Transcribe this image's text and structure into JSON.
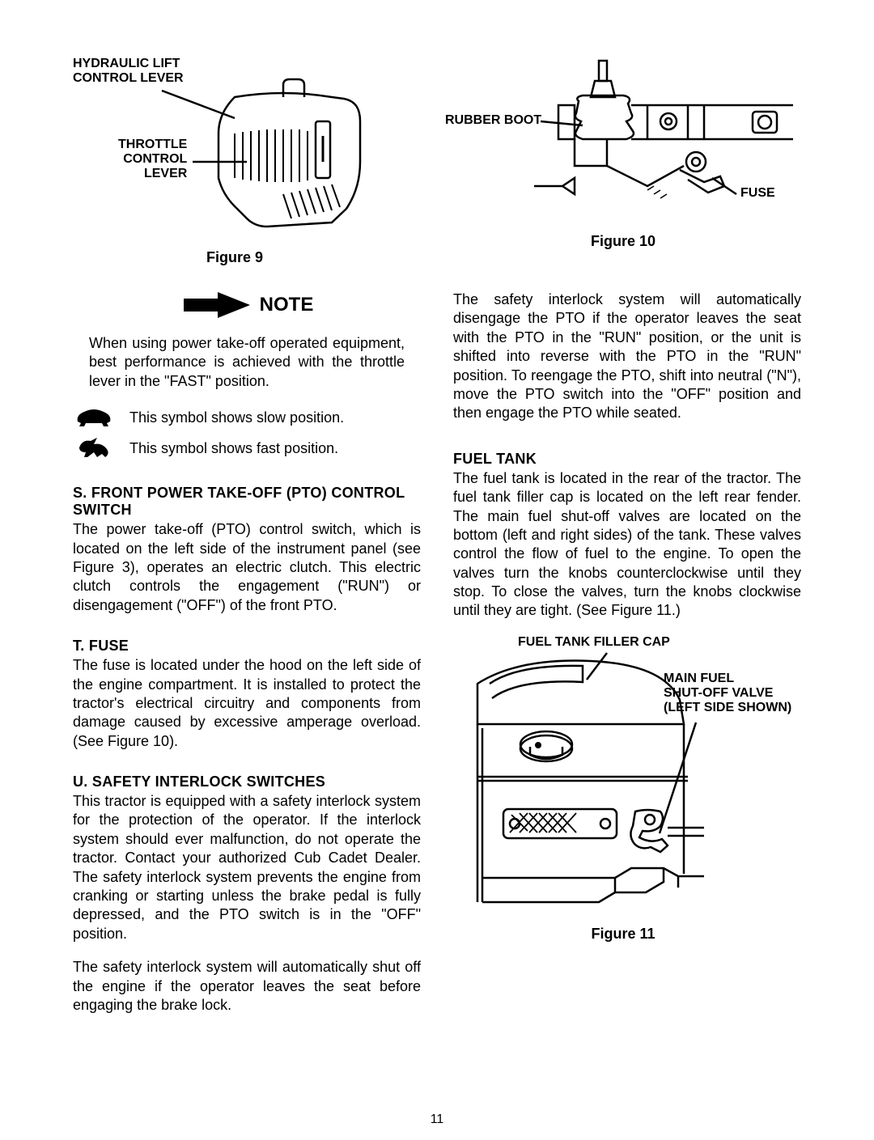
{
  "figure9": {
    "label1": "HYDRAULIC LIFT\nCONTROL LEVER",
    "label2": "THROTTLE\nCONTROL\nLEVER",
    "caption": "Figure 9"
  },
  "figure10": {
    "label1": "RUBBER BOOT",
    "label2": "FUSE",
    "caption": "Figure 10"
  },
  "note": {
    "title": "NOTE",
    "para": "When using power take-off operated equipment, best performance is achieved with the throttle lever in the \"FAST\" position.",
    "slow": "This symbol shows slow position.",
    "fast": "This symbol shows fast position."
  },
  "s": {
    "heading": "S.  FRONT POWER TAKE-OFF (PTO) CONTROL SWITCH",
    "para": "The power take-off (PTO) control switch, which is located on the left side of the instrument panel (see Figure 3), operates an electric clutch. This electric clutch controls the engagement (\"RUN\") or disengagement (\"OFF\") of the front PTO."
  },
  "t": {
    "heading": "T.  FUSE",
    "para": "The fuse is located under the hood on the left side of the engine compartment. It is installed to protect the tractor's electrical circuitry and components from damage caused by excessive amperage overload. (See Figure 10)."
  },
  "u": {
    "heading": "U.  SAFETY INTERLOCK SWITCHES",
    "para1": "This tractor is equipped with a safety interlock system for the protection of the operator. If the interlock system should ever malfunction, do not operate the tractor. Contact your authorized Cub Cadet Dealer. The safety interlock system prevents the engine from cranking or starting unless the brake pedal is fully depressed, and the PTO switch is in the \"OFF\" position.",
    "para2": "The safety interlock system will automatically shut off the engine if the operator leaves the seat before engaging the brake lock."
  },
  "right_para": "The safety interlock system will automatically disengage the PTO if the operator leaves the seat with the PTO in the \"RUN\" position, or the unit is shifted into reverse with the PTO in the \"RUN\" position. To reengage the PTO, shift into neutral (\"N\"), move the PTO switch into the \"OFF\" position and then engage the PTO while seated.",
  "fuel": {
    "heading": "FUEL TANK",
    "para": "The fuel tank is located in the rear of the tractor. The fuel tank filler cap is located on the left rear fender. The main fuel shut-off valves are located on the bottom (left and right sides) of the tank. These valves control the flow of fuel to the engine. To open the valves turn the knobs counterclockwise until they stop. To close the valves, turn the knobs clockwise until they are tight. (See Figure 11.)"
  },
  "figure11": {
    "label1": "FUEL TANK FILLER CAP",
    "label2": "MAIN FUEL\nSHUT-OFF VALVE\n(LEFT SIDE SHOWN)",
    "caption": "Figure 11"
  },
  "page_number": "11"
}
